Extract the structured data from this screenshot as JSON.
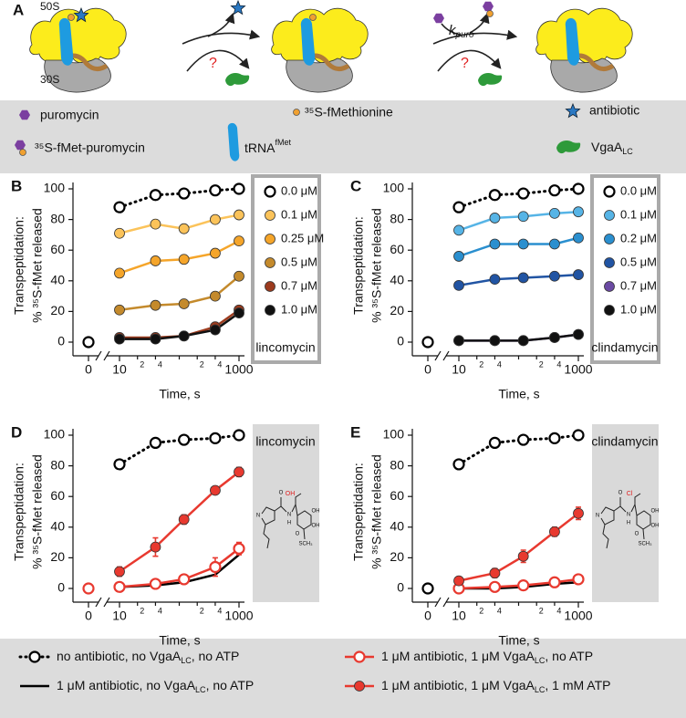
{
  "panel_a": {
    "label": "A",
    "large_subunit": "50S",
    "small_subunit": "30S",
    "rate": "k",
    "rate_sub": "puro",
    "unknown": "?"
  },
  "key": {
    "puromycin": "puromycin",
    "fmet": "³⁵S-fMethionine",
    "antibiotic": "antibiotic",
    "fmet_puromycin": "³⁵S-fMet-puromycin",
    "trna": {
      "main": "tRNA",
      "sup": "fMet"
    },
    "vgaa": {
      "main": "VgaA",
      "sub": "LC"
    }
  },
  "chart_data": [
    {
      "type": "line",
      "panel": "B",
      "antibiotic": "lincomycin",
      "x_label": "Time, s",
      "y_label": [
        "Transpeptidation:",
        "% ³⁵S-fMet released"
      ],
      "log_x": true,
      "x": [
        10,
        40,
        120,
        400,
        1000
      ],
      "xlim": [
        10,
        1000
      ],
      "xticks": [
        10,
        {
          "value": 20,
          "label": "2"
        },
        {
          "value": 40,
          "label": "4"
        },
        {
          "value": 100,
          "label": null
        },
        {
          "value": 200,
          "label": "2"
        },
        {
          "value": 400,
          "label": "4"
        },
        1000
      ],
      "xticks_break": [
        0
      ],
      "ylim": [
        0,
        100
      ],
      "yticks": [
        0,
        20,
        40,
        60,
        80,
        100
      ],
      "series": [
        {
          "name": "0.0 μM",
          "color": "#000000",
          "line": "dotted",
          "marker": "open",
          "values": [
            88,
            96,
            97,
            99,
            100
          ],
          "t0": 0
        },
        {
          "name": "0.1 μM",
          "color": "#fbc35a",
          "line": "solid",
          "marker": "filled",
          "values": [
            71,
            77,
            74,
            80,
            83
          ]
        },
        {
          "name": "0.25 μM",
          "color": "#f5a52a",
          "line": "solid",
          "marker": "filled",
          "values": [
            45,
            53,
            54,
            58,
            66
          ]
        },
        {
          "name": "0.5 μM",
          "color": "#c48a2c",
          "line": "solid",
          "marker": "filled",
          "values": [
            21,
            24,
            25,
            30,
            43
          ]
        },
        {
          "name": "0.7 μM",
          "color": "#9c3b1e",
          "line": "solid",
          "marker": "filled",
          "values": [
            3,
            3,
            4,
            10,
            21
          ]
        },
        {
          "name": "1.0 μM",
          "color": "#111111",
          "line": "solid",
          "marker": "filled",
          "values": [
            2,
            2,
            4,
            8,
            19
          ]
        }
      ]
    },
    {
      "type": "line",
      "panel": "C",
      "antibiotic": "clindamycin",
      "x_label": "Time, s",
      "y_label": [
        "Transpeptidation:",
        "% ³⁵S-fMet released"
      ],
      "log_x": true,
      "x": [
        10,
        40,
        120,
        400,
        1000
      ],
      "xlim": [
        10,
        1000
      ],
      "xticks": [
        10,
        {
          "value": 20,
          "label": "2"
        },
        {
          "value": 40,
          "label": "4"
        },
        {
          "value": 100,
          "label": null
        },
        {
          "value": 200,
          "label": "2"
        },
        {
          "value": 400,
          "label": "4"
        },
        1000
      ],
      "xticks_break": [
        0
      ],
      "ylim": [
        0,
        100
      ],
      "yticks": [
        0,
        20,
        40,
        60,
        80,
        100
      ],
      "series": [
        {
          "name": "0.0 μM",
          "color": "#000000",
          "line": "dotted",
          "marker": "open",
          "values": [
            88,
            96,
            97,
            99,
            100
          ],
          "t0": 0
        },
        {
          "name": "0.1 μM",
          "color": "#56b4e6",
          "line": "solid",
          "marker": "filled",
          "values": [
            73,
            81,
            82,
            84,
            85
          ]
        },
        {
          "name": "0.2 μM",
          "color": "#2a8fcf",
          "line": "solid",
          "marker": "filled",
          "values": [
            56,
            64,
            64,
            64,
            68
          ]
        },
        {
          "name": "0.5 μM",
          "color": "#2154a3",
          "line": "solid",
          "marker": "filled",
          "values": [
            37,
            41,
            42,
            43,
            44
          ]
        },
        {
          "name": "0.7 μM",
          "color": "#6b4aa3",
          "line": "solid",
          "marker": "filled",
          "values": [
            1,
            1,
            1,
            3,
            5
          ]
        },
        {
          "name": "1.0 μM",
          "color": "#111111",
          "line": "solid",
          "marker": "filled",
          "values": [
            1,
            1,
            1,
            3,
            5
          ]
        }
      ]
    },
    {
      "type": "line",
      "panel": "D",
      "antibiotic": "lincomycin",
      "x_label": "Time, s",
      "y_label": [
        "Transpeptidation:",
        "% ³⁵S-fMet released"
      ],
      "log_x": true,
      "x": [
        10,
        40,
        120,
        400,
        1000
      ],
      "xlim": [
        10,
        1000
      ],
      "xticks": [
        10,
        {
          "value": 20,
          "label": "2"
        },
        {
          "value": 40,
          "label": "4"
        },
        {
          "value": 100,
          "label": null
        },
        {
          "value": 200,
          "label": "2"
        },
        {
          "value": 400,
          "label": "4"
        },
        1000
      ],
      "xticks_break": [
        0
      ],
      "ylim": [
        0,
        100
      ],
      "yticks": [
        0,
        20,
        40,
        60,
        80,
        100
      ],
      "structure": {
        "atoms": [
          "N",
          "O",
          "N",
          "H",
          "O",
          "OH",
          "OH",
          "SCH₃"
        ],
        "highlight": "OH"
      },
      "series": [
        {
          "color": "#000000",
          "line": "dotted",
          "marker": "open",
          "values": [
            81,
            95,
            97,
            98,
            100
          ],
          "errors": [
            3,
            2,
            1,
            1,
            1
          ]
        },
        {
          "color": "#000000",
          "line": "solid",
          "marker": "none",
          "values": [
            1,
            2,
            4,
            9,
            22
          ]
        },
        {
          "color": "#e8392f",
          "line": "solid",
          "marker": "open",
          "values": [
            1,
            3,
            6,
            14,
            26
          ],
          "errors": [
            2,
            2,
            3,
            6,
            4
          ],
          "t0": 0
        },
        {
          "color": "#e8392f",
          "line": "solid",
          "marker": "filled",
          "values": [
            11,
            27,
            45,
            64,
            76
          ],
          "errors": [
            3,
            6,
            3,
            2,
            3
          ]
        }
      ]
    },
    {
      "type": "line",
      "panel": "E",
      "antibiotic": "clindamycin",
      "x_label": "Time, s",
      "y_label": [
        "Transpeptidation:",
        "% ³⁵S-fMet released"
      ],
      "log_x": true,
      "x": [
        10,
        40,
        120,
        400,
        1000
      ],
      "xlim": [
        10,
        1000
      ],
      "xticks": [
        10,
        {
          "value": 20,
          "label": "2"
        },
        {
          "value": 40,
          "label": "4"
        },
        {
          "value": 100,
          "label": null
        },
        {
          "value": 200,
          "label": "2"
        },
        {
          "value": 400,
          "label": "4"
        },
        1000
      ],
      "xticks_break": [
        0
      ],
      "ylim": [
        0,
        100
      ],
      "yticks": [
        0,
        20,
        40,
        60,
        80,
        100
      ],
      "structure": {
        "atoms": [
          "N",
          "O",
          "N",
          "H",
          "O",
          "OH",
          "OH",
          "SCH₃"
        ],
        "highlight": "Cl"
      },
      "series": [
        {
          "color": "#000000",
          "line": "dotted",
          "marker": "open",
          "values": [
            81,
            95,
            97,
            98,
            100
          ],
          "errors": [
            3,
            2,
            1,
            1,
            1
          ],
          "t0": 0
        },
        {
          "color": "#000000",
          "line": "solid",
          "marker": "none",
          "values": [
            0,
            0,
            1,
            3,
            4
          ]
        },
        {
          "color": "#e8392f",
          "line": "solid",
          "marker": "open",
          "values": [
            0,
            1,
            2,
            4,
            6
          ],
          "errors": [
            1,
            1,
            1,
            2,
            2
          ]
        },
        {
          "color": "#e8392f",
          "line": "solid",
          "marker": "filled",
          "values": [
            5,
            10,
            21,
            37,
            49
          ],
          "errors": [
            2,
            3,
            4,
            3,
            4
          ]
        }
      ]
    }
  ],
  "legend": [
    {
      "before": "no antibiotic, no VgaA",
      "sub": "LC",
      "after": ", no ATP",
      "color": "#000000",
      "line": "dotted",
      "marker": "open"
    },
    {
      "before": "1 μM antibiotic, no VgaA",
      "sub": "LC",
      "after": ", no ATP",
      "color": "#000000",
      "line": "solid",
      "marker": "none"
    },
    {
      "before": "1 μM antibiotic, 1 μM VgaA",
      "sub": "LC",
      "after": ", no ATP",
      "color": "#e8392f",
      "line": "solid",
      "marker": "open"
    },
    {
      "before": "1 μM antibiotic, 1 μM VgaA",
      "sub": "LC",
      "after": ", 1 mM ATP",
      "color": "#e8392f",
      "line": "solid",
      "marker": "filled"
    }
  ]
}
